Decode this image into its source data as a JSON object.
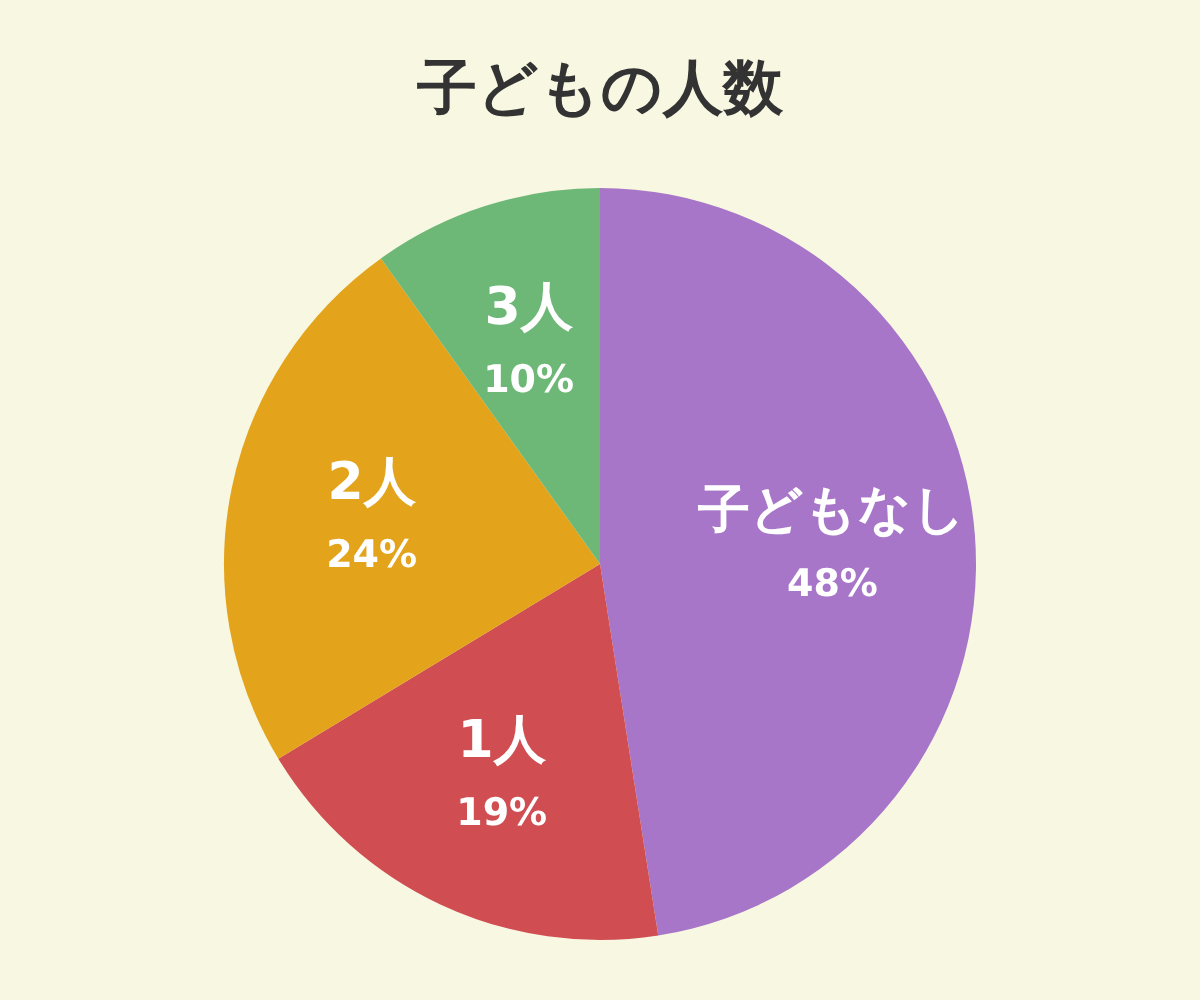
{
  "chart_data": {
    "type": "pie",
    "title": "子どもの人数",
    "categories": [
      "子どもなし",
      "1人",
      "2人",
      "3人"
    ],
    "values": [
      48,
      19,
      24,
      10
    ],
    "value_labels": [
      "48%",
      "19%",
      "24%",
      "10%"
    ],
    "colors": [
      "#a876c8",
      "#d04d52",
      "#e3a31a",
      "#6db876"
    ]
  }
}
